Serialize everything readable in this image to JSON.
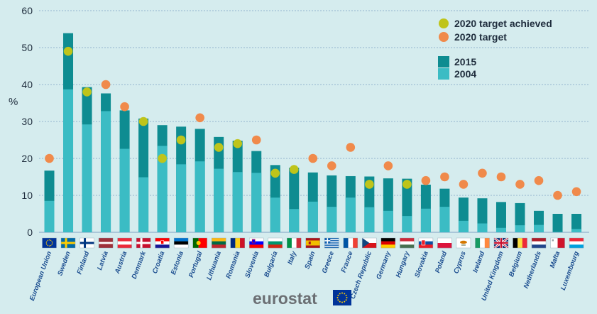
{
  "chart_data": {
    "type": "bar",
    "ylabel": "%",
    "ylim": [
      0,
      60
    ],
    "yticks": [
      0,
      10,
      20,
      30,
      40,
      50,
      60
    ],
    "grid": true,
    "legend_position": "top-right",
    "categories": [
      "European Union",
      "Sweden",
      "Finland",
      "Latvia",
      "Austria",
      "Denmark",
      "Croatia",
      "Estonia",
      "Portugal",
      "Lithuania",
      "Romania",
      "Slovenia",
      "Bulgaria",
      "Italy",
      "Spain",
      "Greece",
      "France",
      "Czech Republic",
      "Germany",
      "Hungary",
      "Slovakia",
      "Poland",
      "Cyprus",
      "Ireland",
      "United Kingdom",
      "Belgium",
      "Netherlands",
      "Malta",
      "Luxembourg"
    ],
    "flags": [
      "eu",
      "se",
      "fi",
      "lv",
      "at",
      "dk",
      "hr",
      "ee",
      "pt",
      "lt",
      "ro",
      "si",
      "bg",
      "it",
      "es",
      "gr",
      "fr",
      "cz",
      "de",
      "hu",
      "sk",
      "pl",
      "cy",
      "ie",
      "gb",
      "be",
      "nl",
      "mt",
      "lu"
    ],
    "series": [
      {
        "name": "2015",
        "color": "#0e8c91",
        "values": [
          16.7,
          53.9,
          39.3,
          37.6,
          33.0,
          30.8,
          29.0,
          28.6,
          28.0,
          25.8,
          24.8,
          22.0,
          18.2,
          17.5,
          16.2,
          15.4,
          15.2,
          15.1,
          14.6,
          14.5,
          12.9,
          11.8,
          9.4,
          9.2,
          8.2,
          7.9,
          5.8,
          5.0,
          5.0
        ]
      },
      {
        "name": "2004",
        "color": "#3bbcc4",
        "values": [
          8.5,
          38.7,
          29.2,
          32.8,
          22.6,
          14.9,
          23.4,
          18.4,
          19.2,
          17.2,
          16.3,
          16.1,
          9.4,
          6.3,
          8.3,
          6.9,
          9.4,
          6.8,
          5.8,
          4.4,
          6.4,
          6.9,
          3.1,
          2.4,
          1.2,
          1.9,
          2.0,
          0.1,
          0.9
        ]
      },
      {
        "name": "2020 target",
        "color": "#f08a4b",
        "values": [
          20,
          49,
          38,
          40,
          34,
          30,
          20,
          25,
          31,
          23,
          24,
          25,
          16,
          17,
          20,
          18,
          23,
          13,
          18,
          13,
          14,
          15,
          13,
          16,
          15,
          13,
          14,
          10,
          11
        ]
      }
    ],
    "target_achieved": [
      false,
      true,
      true,
      false,
      false,
      true,
      true,
      true,
      false,
      true,
      true,
      false,
      true,
      true,
      false,
      false,
      false,
      true,
      false,
      true,
      false,
      false,
      false,
      false,
      false,
      false,
      false,
      false,
      false
    ],
    "legend": [
      {
        "label": "2020 target achieved",
        "color": "#bfc41a",
        "shape": "circle"
      },
      {
        "label": "2020 target",
        "color": "#f08a4b",
        "shape": "circle"
      },
      {
        "label": "2015",
        "color": "#0e8c91",
        "shape": "square"
      },
      {
        "label": "2004",
        "color": "#3bbcc4",
        "shape": "square"
      }
    ],
    "colors": {
      "background": "#d5ecee",
      "grid": "#7fa0c2",
      "achieved": "#bfc41a",
      "target": "#f08a4b",
      "bar2015": "#0e8c91",
      "bar2004": "#3bbcc4",
      "label": "#1b4d8f"
    }
  },
  "footer": {
    "logo_text": "eurostat"
  }
}
